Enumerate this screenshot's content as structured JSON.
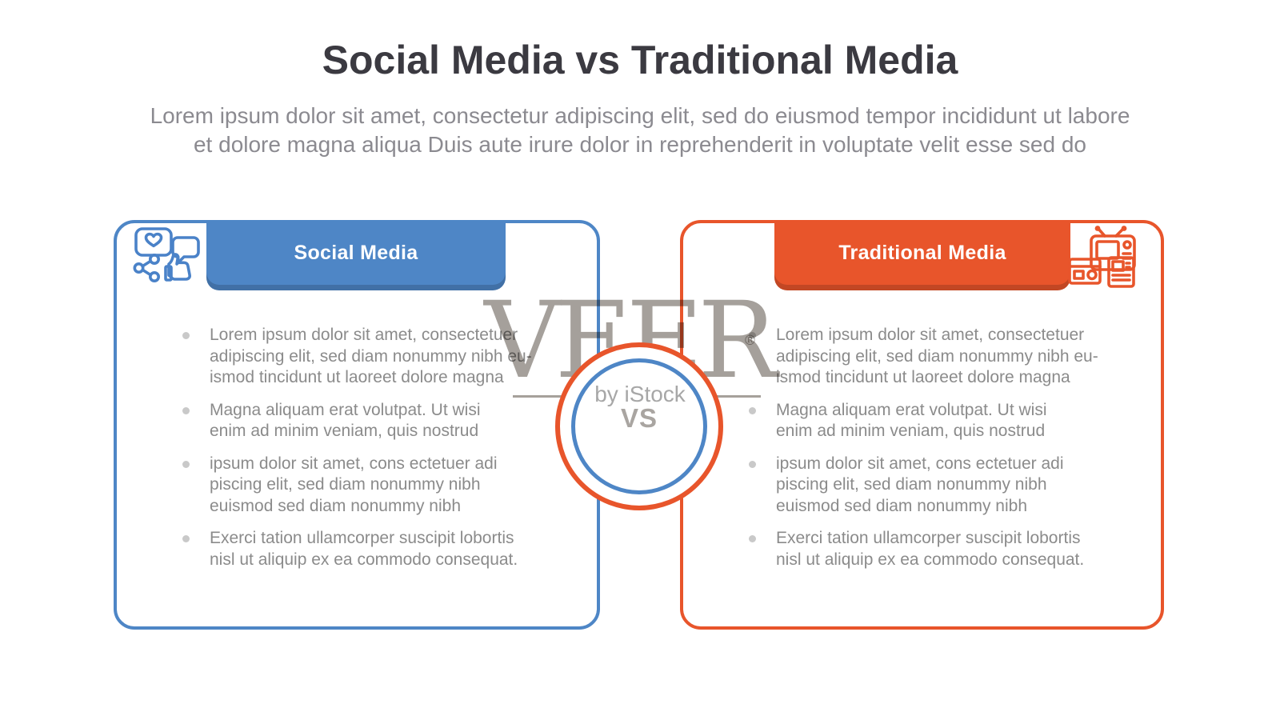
{
  "page": {
    "title": "Social Media vs Traditional Media",
    "subtitle": "Lorem ipsum dolor sit amet, consectetur adipiscing elit, sed do eiusmod tempor incididunt ut labore\net dolore magna aliqua Duis aute irure dolor in reprehenderit in voluptate velit esse sed do"
  },
  "watermark": {
    "brand": "VEER",
    "registered": "®",
    "byline": "by iStock"
  },
  "versus": {
    "label": "VS"
  },
  "colors": {
    "blue_accent": "#4e86c6",
    "orange_accent": "#e8552b",
    "title_text": "#3b3a41",
    "body_text": "#8b8b8b",
    "watermark_gray": "#a5a09b"
  },
  "columns": [
    {
      "id": "social-media",
      "header": "Social Media",
      "icon": "social-media-icon",
      "accent": "#4e86c6",
      "bullets": [
        "Lorem ipsum dolor sit amet, consectetuer\nadipiscing elit, sed diam nonummy nibh eu-\nismod tincidunt ut laoreet dolore magna",
        "Magna aliquam erat volutpat. Ut wisi\nenim ad minim veniam, quis nostrud",
        "ipsum dolor sit amet, cons ectetuer adi\npiscing elit, sed diam nonummy nibh\neuismod sed diam nonummy nibh",
        "Exerci tation ullamcorper suscipit lobortis\nnisl ut aliquip ex ea commodo consequat."
      ]
    },
    {
      "id": "traditional-media",
      "header": "Traditional Media",
      "icon": "traditional-media-icon",
      "accent": "#e8552b",
      "bullets": [
        "Lorem ipsum dolor sit amet, consectetuer\nadipiscing elit, sed diam nonummy nibh eu-\nismod tincidunt ut laoreet dolore magna",
        "Magna aliquam erat volutpat. Ut wisi\nenim ad minim veniam, quis nostrud",
        "ipsum dolor sit amet, cons ectetuer adi\npiscing elit, sed diam nonummy nibh\neuismod sed diam nonummy nibh",
        "Exerci tation ullamcorper suscipit lobortis\nnisl ut aliquip ex ea commodo consequat."
      ]
    }
  ]
}
